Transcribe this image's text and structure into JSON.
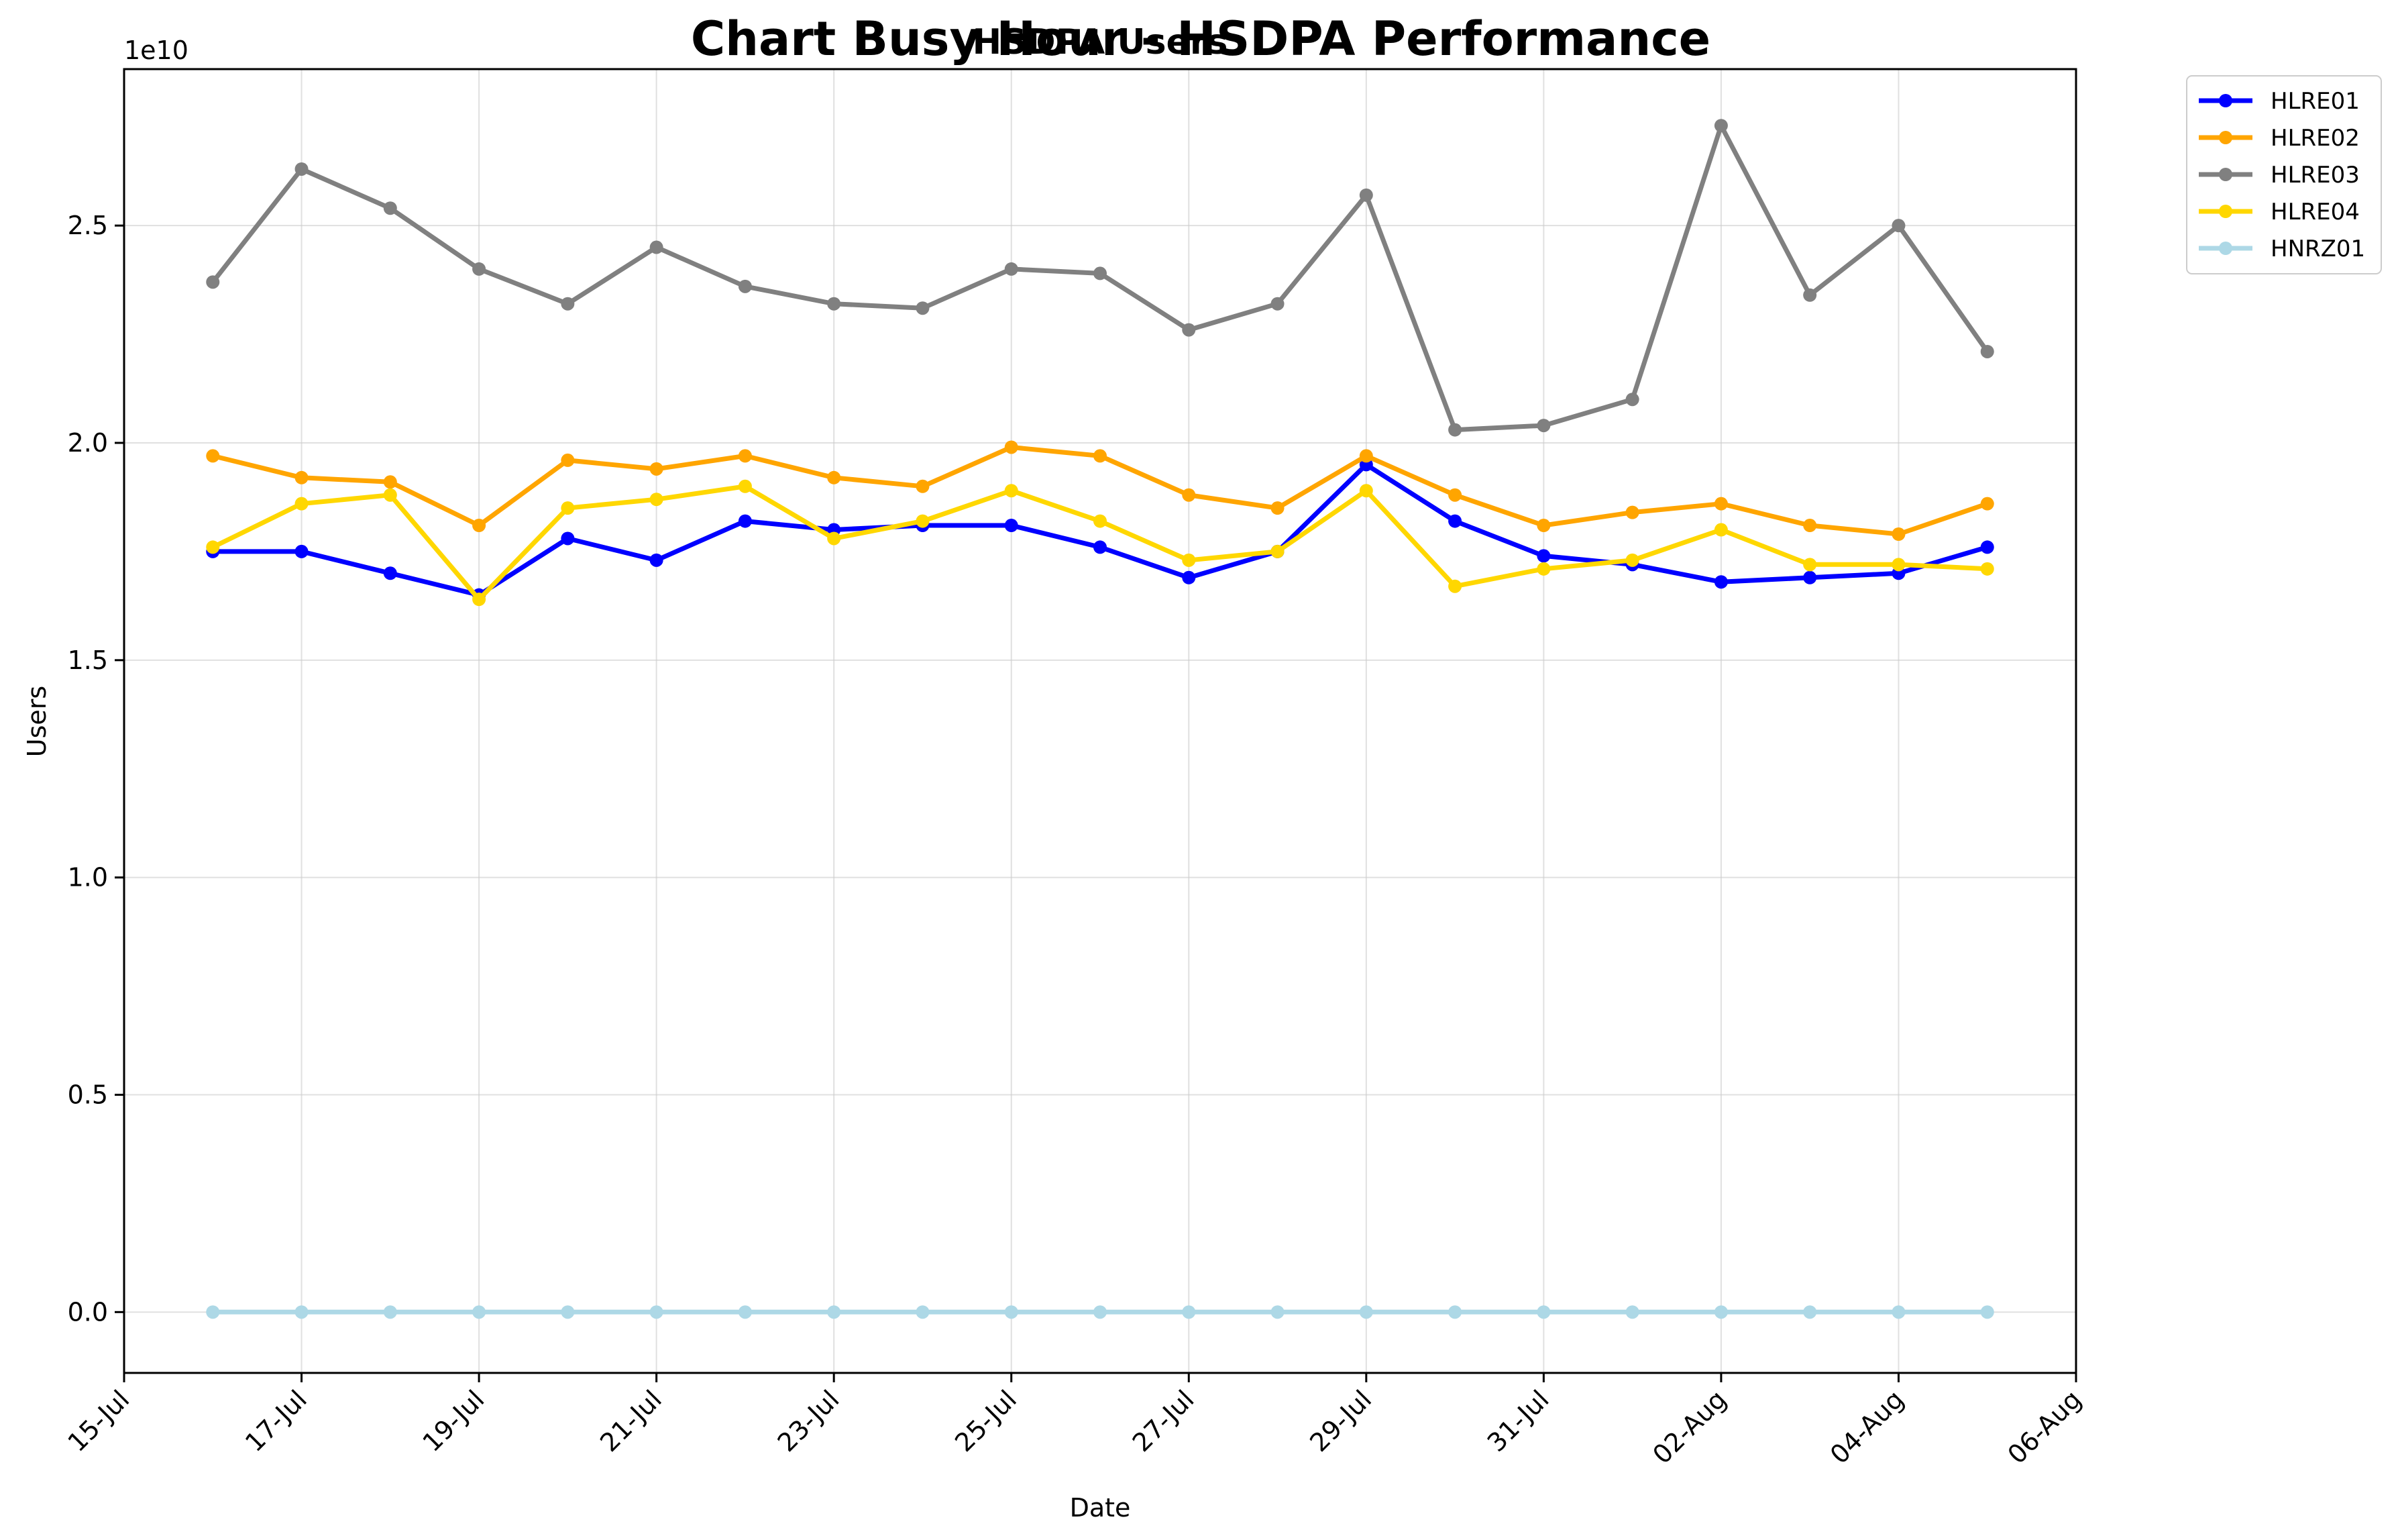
{
  "chart_data": {
    "type": "line",
    "title": "Chart Busy Hour - HSDPA Performance",
    "subtitle": "HSDPA Users",
    "xlabel": "Date",
    "ylabel": "Users",
    "y_offset_label": "1e10",
    "y_scale": 10000000000,
    "xlim": [
      "2024-07-15",
      "2024-08-06"
    ],
    "ylim": [
      -0.14,
      2.86
    ],
    "grid": true,
    "legend_position": "outside-top-right",
    "x_ticks": [
      "2024-07-15",
      "2024-07-17",
      "2024-07-19",
      "2024-07-21",
      "2024-07-23",
      "2024-07-25",
      "2024-07-27",
      "2024-07-29",
      "2024-07-31",
      "2024-08-02",
      "2024-08-04",
      "2024-08-06"
    ],
    "x_tick_labels": [
      "15-Jul",
      "17-Jul",
      "19-Jul",
      "21-Jul",
      "23-Jul",
      "25-Jul",
      "27-Jul",
      "29-Jul",
      "31-Jul",
      "02-Aug",
      "04-Aug",
      "06-Aug"
    ],
    "y_ticks": [
      0.0,
      0.5,
      1.0,
      1.5,
      2.0,
      2.5
    ],
    "y_tick_labels": [
      "0.0",
      "0.5",
      "1.0",
      "1.5",
      "2.0",
      "2.5"
    ],
    "x": [
      "2024-07-16",
      "2024-07-17",
      "2024-07-18",
      "2024-07-19",
      "2024-07-20",
      "2024-07-21",
      "2024-07-22",
      "2024-07-23",
      "2024-07-24",
      "2024-07-25",
      "2024-07-26",
      "2024-07-27",
      "2024-07-28",
      "2024-07-29",
      "2024-07-30",
      "2024-07-31",
      "2024-08-01",
      "2024-08-02",
      "2024-08-03",
      "2024-08-04",
      "2024-08-05"
    ],
    "series": [
      {
        "name": "HLRE01",
        "color": "#0000ff",
        "values": [
          1.75,
          1.75,
          1.7,
          1.65,
          1.78,
          1.73,
          1.82,
          1.8,
          1.81,
          1.81,
          1.76,
          1.69,
          1.75,
          1.95,
          1.82,
          1.74,
          1.72,
          1.68,
          1.69,
          1.7,
          1.76
        ]
      },
      {
        "name": "HLRE02",
        "color": "#ffa500",
        "values": [
          1.97,
          1.92,
          1.91,
          1.81,
          1.96,
          1.94,
          1.97,
          1.92,
          1.9,
          1.99,
          1.97,
          1.88,
          1.85,
          1.97,
          1.88,
          1.81,
          1.84,
          1.86,
          1.81,
          1.79,
          1.86
        ]
      },
      {
        "name": "HLRE03",
        "color": "#808080",
        "values": [
          2.37,
          2.63,
          2.54,
          2.4,
          2.32,
          2.45,
          2.36,
          2.32,
          2.31,
          2.4,
          2.39,
          2.26,
          2.32,
          2.57,
          2.03,
          2.04,
          2.1,
          2.73,
          2.34,
          2.5,
          2.21
        ]
      },
      {
        "name": "HLRE04",
        "color": "#ffd700",
        "values": [
          1.76,
          1.86,
          1.88,
          1.64,
          1.85,
          1.87,
          1.9,
          1.78,
          1.82,
          1.89,
          1.82,
          1.73,
          1.75,
          1.89,
          1.67,
          1.71,
          1.73,
          1.8,
          1.72,
          1.72,
          1.71
        ]
      },
      {
        "name": "HNRZ01",
        "color": "#add8e6",
        "values": [
          0.0,
          0.0,
          0.0,
          0.0,
          0.0,
          0.0,
          0.0,
          0.0,
          0.0,
          0.0,
          0.0,
          0.0,
          0.0,
          0.0,
          0.0,
          0.0,
          0.0,
          0.0,
          0.0,
          0.0,
          0.0
        ]
      }
    ]
  }
}
